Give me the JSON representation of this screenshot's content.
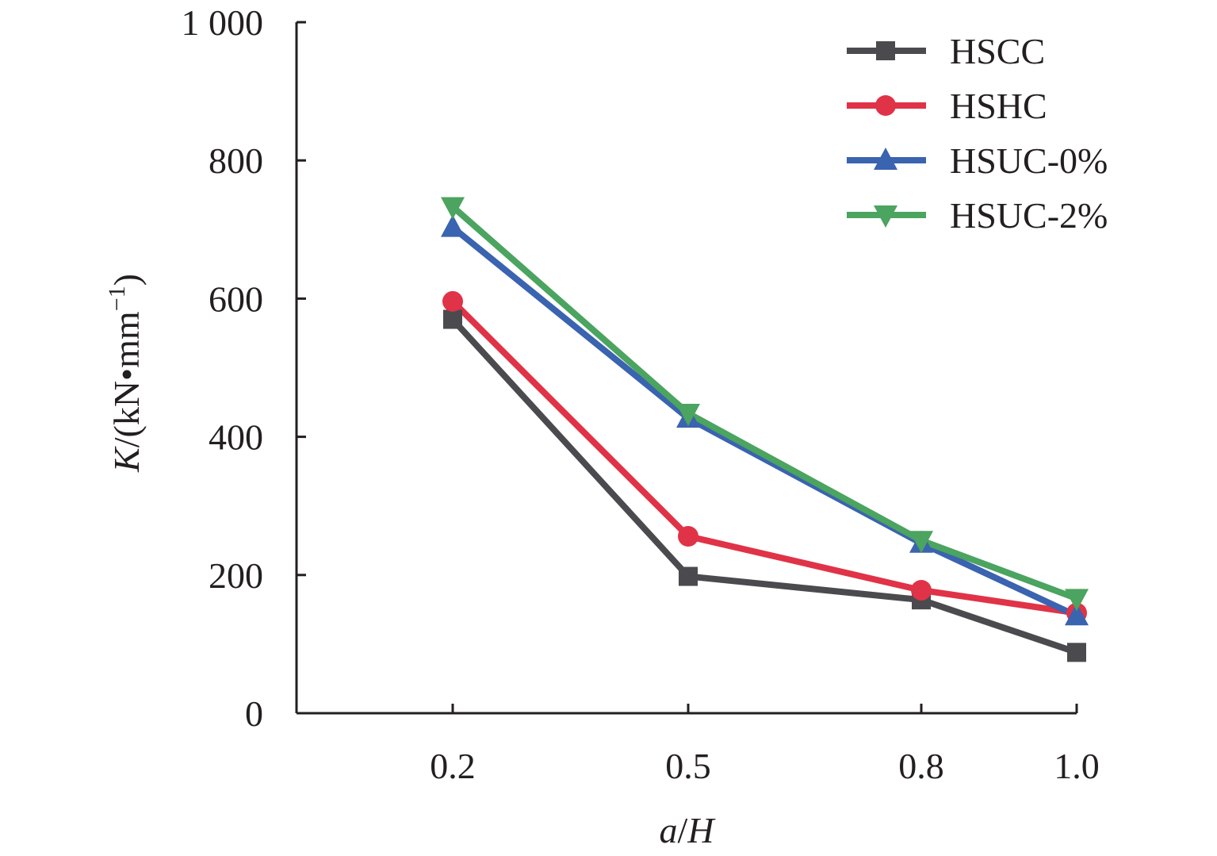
{
  "chart_data": {
    "type": "line",
    "x_categories": [
      "0.2",
      "0.5",
      "0.8",
      "1.0"
    ],
    "x_values": [
      0.2,
      0.5,
      0.8,
      1.0
    ],
    "xlabel": {
      "italic_a": "a",
      "slash": "/",
      "italic_b": "H"
    },
    "ylabel": {
      "italic": "K",
      "unit": "/(kN•mm",
      "sup": "−1",
      "close": ")"
    },
    "ylim": [
      0,
      1000
    ],
    "y_ticks": [
      0,
      200,
      400,
      600,
      800,
      1000
    ],
    "y_tick_labels": [
      "0",
      "200",
      "400",
      "600",
      "800",
      "1 000"
    ],
    "grid": false,
    "legend_position": "top-right",
    "series": [
      {
        "name": "HSCC",
        "color": "#4a4a4f",
        "marker": "square",
        "values": [
          570,
          198,
          164,
          88
        ]
      },
      {
        "name": "HSHC",
        "color": "#e03347",
        "marker": "circle",
        "values": [
          596,
          256,
          178,
          145
        ]
      },
      {
        "name": "HSUC-0%",
        "color": "#3a63b0",
        "marker": "triangle-up",
        "values": [
          703,
          427,
          246,
          141
        ]
      },
      {
        "name": "HSUC-2%",
        "color": "#4ba45f",
        "marker": "triangle-down",
        "values": [
          733,
          434,
          250,
          166
        ]
      }
    ]
  }
}
